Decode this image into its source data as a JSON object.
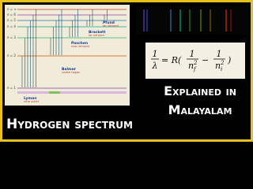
{
  "diagram": {
    "levels": [
      "n = ∞",
      "n = 6",
      "n = 5",
      "n = 4",
      "n = 3",
      "n = 2",
      "n = 1"
    ],
    "series": [
      {
        "name": "Lyman",
        "region": "ultra violet"
      },
      {
        "name": "Balmer",
        "region": "visible region"
      },
      {
        "name": "Paschen",
        "region": "near infrared"
      },
      {
        "name": "Brackett",
        "region": "far infrared"
      },
      {
        "name": "Pfund",
        "region": "far infrared"
      }
    ]
  },
  "formula": {
    "lhs_num": "1",
    "lhs_den": "λ",
    "equals": "= R(",
    "num1": "1",
    "den1": "n",
    "sub1": "f",
    "sup1": "2",
    "minus": "−",
    "num2": "1",
    "den2": "n",
    "sub2": "i",
    "sup2": "2",
    "close": ")"
  },
  "headline": "Explained in Malayalam",
  "title": "Hydrogen spectrum"
}
